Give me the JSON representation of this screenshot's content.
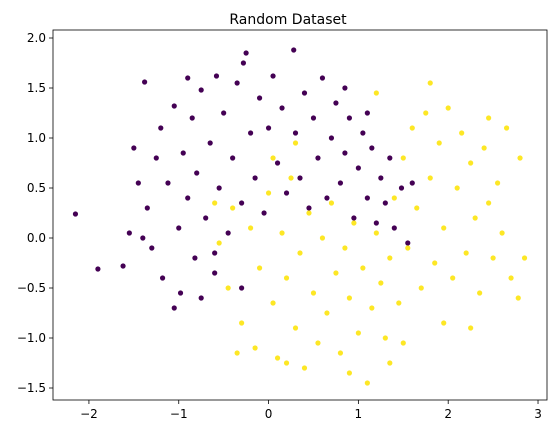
{
  "chart_data": {
    "type": "scatter",
    "title": "Random Dataset",
    "xlabel": "",
    "ylabel": "",
    "xlim": [
      -2.4,
      3.1
    ],
    "ylim": [
      -1.62,
      2.08
    ],
    "xticks": [
      -2,
      -1,
      0,
      1,
      2,
      3
    ],
    "yticks": [
      -1.5,
      -1.0,
      -0.5,
      0.0,
      0.5,
      1.0,
      1.5,
      2.0
    ],
    "xtick_labels": [
      "−2",
      "−1",
      "0",
      "1",
      "2",
      "3"
    ],
    "ytick_labels": [
      "−1.5",
      "−1.0",
      "−0.5",
      "0.0",
      "0.5",
      "1.0",
      "1.5",
      "2.0"
    ],
    "grid": false,
    "legend": "none",
    "series": [
      {
        "color": "#440154",
        "points": [
          [
            -2.15,
            0.24
          ],
          [
            -1.9,
            -0.31
          ],
          [
            -1.62,
            -0.28
          ],
          [
            -1.55,
            0.05
          ],
          [
            -1.45,
            0.55
          ],
          [
            -1.38,
            1.56
          ],
          [
            -1.35,
            0.3
          ],
          [
            -1.3,
            -0.1
          ],
          [
            -1.25,
            0.8
          ],
          [
            -1.2,
            1.1
          ],
          [
            -1.18,
            -0.4
          ],
          [
            -1.12,
            0.55
          ],
          [
            -1.05,
            1.32
          ],
          [
            -1.0,
            0.1
          ],
          [
            -0.98,
            -0.55
          ],
          [
            -0.95,
            0.85
          ],
          [
            -0.9,
            0.4
          ],
          [
            -0.85,
            1.2
          ],
          [
            -0.82,
            -0.2
          ],
          [
            -0.8,
            0.65
          ],
          [
            -0.75,
            1.48
          ],
          [
            -0.7,
            0.2
          ],
          [
            -0.65,
            0.95
          ],
          [
            -0.6,
            -0.35
          ],
          [
            -0.58,
            1.62
          ],
          [
            -0.55,
            0.5
          ],
          [
            -0.5,
            1.25
          ],
          [
            -0.45,
            0.05
          ],
          [
            -0.4,
            0.8
          ],
          [
            -0.35,
            1.55
          ],
          [
            -0.3,
            0.35
          ],
          [
            -0.28,
            1.75
          ],
          [
            -0.2,
            1.05
          ],
          [
            -0.15,
            0.6
          ],
          [
            -0.1,
            1.4
          ],
          [
            -0.05,
            0.25
          ],
          [
            0.0,
            1.1
          ],
          [
            0.05,
            1.62
          ],
          [
            0.1,
            0.75
          ],
          [
            0.15,
            1.3
          ],
          [
            0.2,
            0.45
          ],
          [
            0.28,
            1.88
          ],
          [
            0.3,
            1.05
          ],
          [
            0.35,
            0.6
          ],
          [
            0.4,
            1.45
          ],
          [
            0.45,
            0.3
          ],
          [
            0.5,
            1.2
          ],
          [
            0.55,
            0.8
          ],
          [
            0.6,
            1.6
          ],
          [
            0.65,
            0.4
          ],
          [
            0.7,
            1.0
          ],
          [
            0.75,
            1.35
          ],
          [
            0.8,
            0.55
          ],
          [
            0.85,
            0.85
          ],
          [
            0.9,
            1.2
          ],
          [
            0.95,
            0.2
          ],
          [
            1.0,
            0.7
          ],
          [
            1.05,
            1.05
          ],
          [
            1.1,
            0.4
          ],
          [
            1.15,
            0.9
          ],
          [
            1.2,
            0.15
          ],
          [
            1.25,
            0.6
          ],
          [
            1.3,
            0.35
          ],
          [
            1.35,
            0.8
          ],
          [
            1.4,
            0.1
          ],
          [
            1.48,
            0.5
          ],
          [
            1.55,
            -0.05
          ],
          [
            -0.3,
            -0.5
          ],
          [
            -0.6,
            -0.15
          ],
          [
            -1.4,
            0.0
          ],
          [
            -1.5,
            0.9
          ],
          [
            -0.9,
            1.6
          ],
          [
            -0.25,
            1.85
          ],
          [
            0.85,
            1.5
          ],
          [
            1.1,
            1.25
          ],
          [
            -1.05,
            -0.7
          ],
          [
            -0.75,
            -0.6
          ],
          [
            1.6,
            0.55
          ]
        ]
      },
      {
        "color": "#fde725",
        "points": [
          [
            -0.55,
            -0.05
          ],
          [
            -0.45,
            -0.5
          ],
          [
            -0.4,
            0.3
          ],
          [
            -0.3,
            -0.85
          ],
          [
            -0.2,
            0.1
          ],
          [
            -0.15,
            -1.1
          ],
          [
            -0.1,
            -0.3
          ],
          [
            0.0,
            0.45
          ],
          [
            0.05,
            -0.65
          ],
          [
            0.1,
            -1.2
          ],
          [
            0.15,
            0.05
          ],
          [
            0.2,
            -0.4
          ],
          [
            0.25,
            0.6
          ],
          [
            0.3,
            -0.9
          ],
          [
            0.35,
            -0.15
          ],
          [
            0.4,
            -1.3
          ],
          [
            0.45,
            0.25
          ],
          [
            0.5,
            -0.55
          ],
          [
            0.55,
            -1.05
          ],
          [
            0.6,
            0.0
          ],
          [
            0.65,
            -0.75
          ],
          [
            0.7,
            0.35
          ],
          [
            0.75,
            -0.35
          ],
          [
            0.8,
            -1.15
          ],
          [
            0.85,
            -0.1
          ],
          [
            0.9,
            -0.6
          ],
          [
            0.95,
            0.15
          ],
          [
            1.0,
            -0.95
          ],
          [
            1.05,
            -0.3
          ],
          [
            1.1,
            -1.45
          ],
          [
            1.15,
            -0.7
          ],
          [
            1.2,
            0.05
          ],
          [
            1.25,
            -0.45
          ],
          [
            1.3,
            -1.0
          ],
          [
            1.35,
            -0.2
          ],
          [
            1.4,
            0.4
          ],
          [
            1.45,
            -0.65
          ],
          [
            1.5,
            0.8
          ],
          [
            1.55,
            -0.1
          ],
          [
            1.6,
            1.1
          ],
          [
            1.65,
            0.3
          ],
          [
            1.7,
            -0.5
          ],
          [
            1.75,
            1.25
          ],
          [
            1.8,
            0.6
          ],
          [
            1.85,
            -0.25
          ],
          [
            1.9,
            0.95
          ],
          [
            1.95,
            0.1
          ],
          [
            2.0,
            1.3
          ],
          [
            2.05,
            -0.4
          ],
          [
            2.1,
            0.5
          ],
          [
            2.15,
            1.05
          ],
          [
            2.2,
            -0.15
          ],
          [
            2.25,
            0.75
          ],
          [
            2.3,
            0.2
          ],
          [
            2.35,
            -0.55
          ],
          [
            2.4,
            0.9
          ],
          [
            2.45,
            0.35
          ],
          [
            2.5,
            -0.2
          ],
          [
            2.55,
            0.55
          ],
          [
            2.6,
            0.05
          ],
          [
            2.7,
            -0.4
          ],
          [
            2.78,
            -0.6
          ],
          [
            2.85,
            -0.2
          ],
          [
            2.8,
            0.8
          ],
          [
            2.65,
            1.1
          ],
          [
            -0.35,
            -1.15
          ],
          [
            0.2,
            -1.25
          ],
          [
            0.9,
            -1.35
          ],
          [
            1.5,
            -1.05
          ],
          [
            1.95,
            -0.85
          ],
          [
            2.25,
            -0.9
          ],
          [
            0.05,
            0.8
          ],
          [
            0.3,
            0.95
          ],
          [
            1.8,
            1.55
          ],
          [
            1.2,
            1.45
          ],
          [
            -0.6,
            0.35
          ],
          [
            2.45,
            1.2
          ],
          [
            1.35,
            -1.25
          ]
        ]
      }
    ]
  }
}
